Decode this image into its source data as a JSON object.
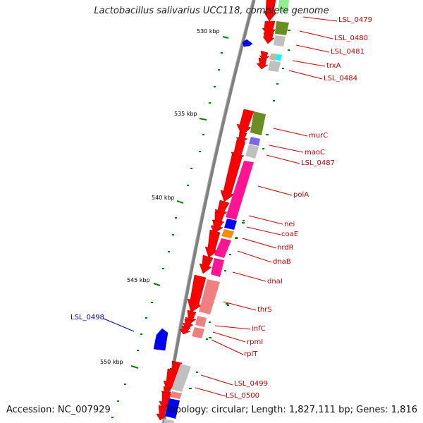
{
  "title": "Lactobacillus salivarius UCC118, complete genome",
  "accession_text": "Accession: NC_007929",
  "summary_text": "Topology: circular; Length: 1,827,111 bp; Genes: 1,816",
  "colors": {
    "backbone": "#808080",
    "cds_arrow": "#ff0000",
    "left_strand_feature": "#0000ff",
    "tick": "#008000",
    "label_red": "#cc0000",
    "label_blue": "#0000aa",
    "cog_olive": "#6b8e23",
    "cog_gray": "#c0c0c0",
    "cog_pink": "#ff1493",
    "cog_salmon": "#f08080",
    "cog_blue": "#0000ff",
    "cog_orange": "#ff8c00",
    "cog_cyan": "#00ffff",
    "cog_purple": "#7b68ee",
    "cog_lightgreen": "#90ee90"
  },
  "scale_labels": [
    {
      "text": "530 kbp"
    },
    {
      "text": "535 kbp"
    },
    {
      "text": "540 kbp"
    },
    {
      "text": "545 kbp"
    },
    {
      "text": "550 kbp"
    }
  ],
  "gene_labels": [
    {
      "text": "LSL_0479"
    },
    {
      "text": "LSL_0480"
    },
    {
      "text": "LSL_0481"
    },
    {
      "text": "trxA"
    },
    {
      "text": "LSL_0484"
    },
    {
      "text": "murC"
    },
    {
      "text": "maoC"
    },
    {
      "text": "LSL_0487"
    },
    {
      "text": "polA"
    },
    {
      "text": "nei"
    },
    {
      "text": "coaE"
    },
    {
      "text": "nrdR"
    },
    {
      "text": "dnaB"
    },
    {
      "text": "dnaI"
    },
    {
      "text": "thrS"
    },
    {
      "text": "infC"
    },
    {
      "text": "rpmI"
    },
    {
      "text": "rplT"
    },
    {
      "text": "LSL_0499"
    },
    {
      "text": "LSL_0500"
    },
    {
      "text": "LSL_0498"
    }
  ]
}
